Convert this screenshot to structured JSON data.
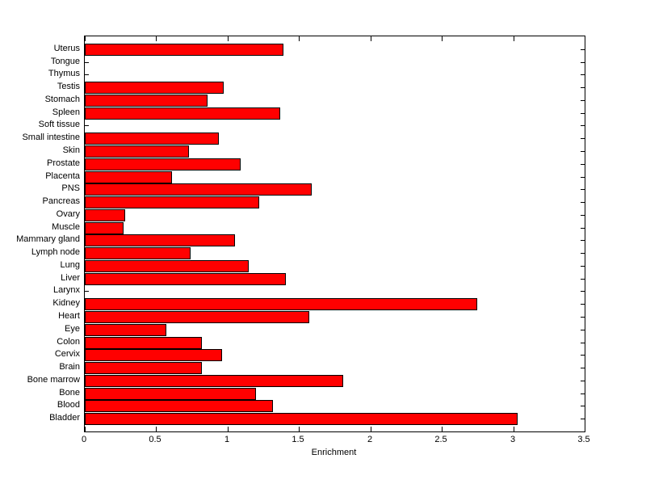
{
  "chart_data": {
    "type": "bar",
    "orientation": "horizontal",
    "title": "",
    "xlabel": "Enrichment",
    "ylabel": "",
    "xlim": [
      0,
      3.5
    ],
    "xticks": [
      0,
      0.5,
      1,
      1.5,
      2,
      2.5,
      3,
      3.5
    ],
    "xtick_labels": [
      "0",
      "0.5",
      "1",
      "1.5",
      "2",
      "2.5",
      "3",
      "3.5"
    ],
    "grid": false,
    "legend": null,
    "bar_color": "#ff0000",
    "bar_edge_color": "#000000",
    "categories": [
      "Uterus",
      "Tongue",
      "Thymus",
      "Testis",
      "Stomach",
      "Spleen",
      "Soft tissue",
      "Small intestine",
      "Skin",
      "Prostate",
      "Placenta",
      "PNS",
      "Pancreas",
      "Ovary",
      "Muscle",
      "Mammary gland",
      "Lymph node",
      "Lung",
      "Liver",
      "Larynx",
      "Kidney",
      "Heart",
      "Eye",
      "Colon",
      "Cervix",
      "Brain",
      "Bone marrow",
      "Bone",
      "Blood",
      "Bladder"
    ],
    "values": [
      1.39,
      0,
      0,
      0.97,
      0.86,
      1.37,
      0,
      0.94,
      0.73,
      1.09,
      0.61,
      1.59,
      1.22,
      0.28,
      0.27,
      1.05,
      0.74,
      1.15,
      1.41,
      0,
      2.75,
      1.57,
      0.57,
      0.82,
      0.96,
      0.82,
      1.81,
      1.2,
      1.32,
      3.03
    ]
  }
}
